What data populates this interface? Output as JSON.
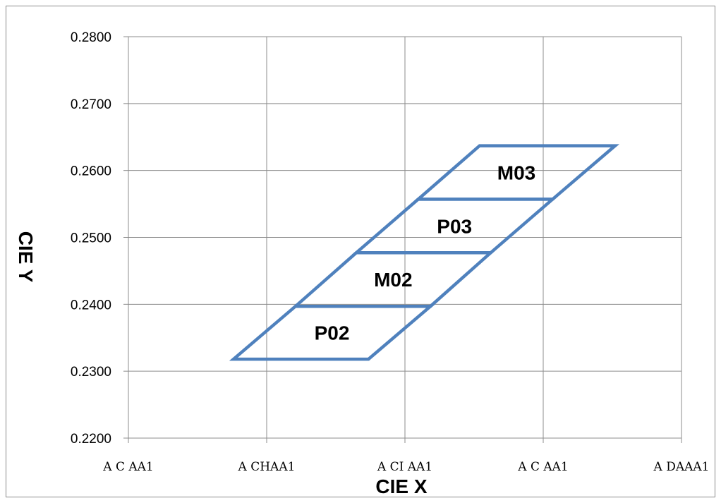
{
  "chart_data": {
    "type": "area",
    "xlabel": "CIE  X",
    "ylabel": "CIE  Y",
    "xlim": [
      0.22,
      0.32
    ],
    "ylim": [
      0.22,
      0.28
    ],
    "grid": true,
    "yticks": [
      {
        "value": 0.22,
        "label": "0.2200"
      },
      {
        "value": 0.23,
        "label": "0.2300"
      },
      {
        "value": 0.24,
        "label": "0.2400"
      },
      {
        "value": 0.25,
        "label": "0.2500"
      },
      {
        "value": 0.26,
        "label": "0.2600"
      },
      {
        "value": 0.27,
        "label": "0.2700"
      },
      {
        "value": 0.28,
        "label": "0.2800"
      }
    ],
    "xticks": [
      {
        "value": 0.22,
        "label": "A  C  AA1"
      },
      {
        "value": 0.245,
        "label": "A  CHAA1"
      },
      {
        "value": 0.27,
        "label": "A  CI AA1"
      },
      {
        "value": 0.295,
        "label": "A  C  AA1"
      },
      {
        "value": 0.32,
        "label": "A  DAAA1"
      }
    ],
    "line_color": "#4f81bd",
    "regions": [
      {
        "name": "P02",
        "points": [
          [
            0.239,
            0.2318
          ],
          [
            0.2634,
            0.2318
          ],
          [
            0.2746,
            0.2397
          ],
          [
            0.2502,
            0.2397
          ]
        ]
      },
      {
        "name": "M02",
        "points": [
          [
            0.2502,
            0.2397
          ],
          [
            0.2746,
            0.2397
          ],
          [
            0.2855,
            0.2477
          ],
          [
            0.2612,
            0.2477
          ]
        ]
      },
      {
        "name": "P03",
        "points": [
          [
            0.2612,
            0.2477
          ],
          [
            0.2855,
            0.2477
          ],
          [
            0.2967,
            0.2557
          ],
          [
            0.2724,
            0.2557
          ]
        ]
      },
      {
        "name": "M03",
        "points": [
          [
            0.2724,
            0.2557
          ],
          [
            0.2967,
            0.2557
          ],
          [
            0.308,
            0.2637
          ],
          [
            0.2835,
            0.2637
          ]
        ]
      }
    ]
  }
}
